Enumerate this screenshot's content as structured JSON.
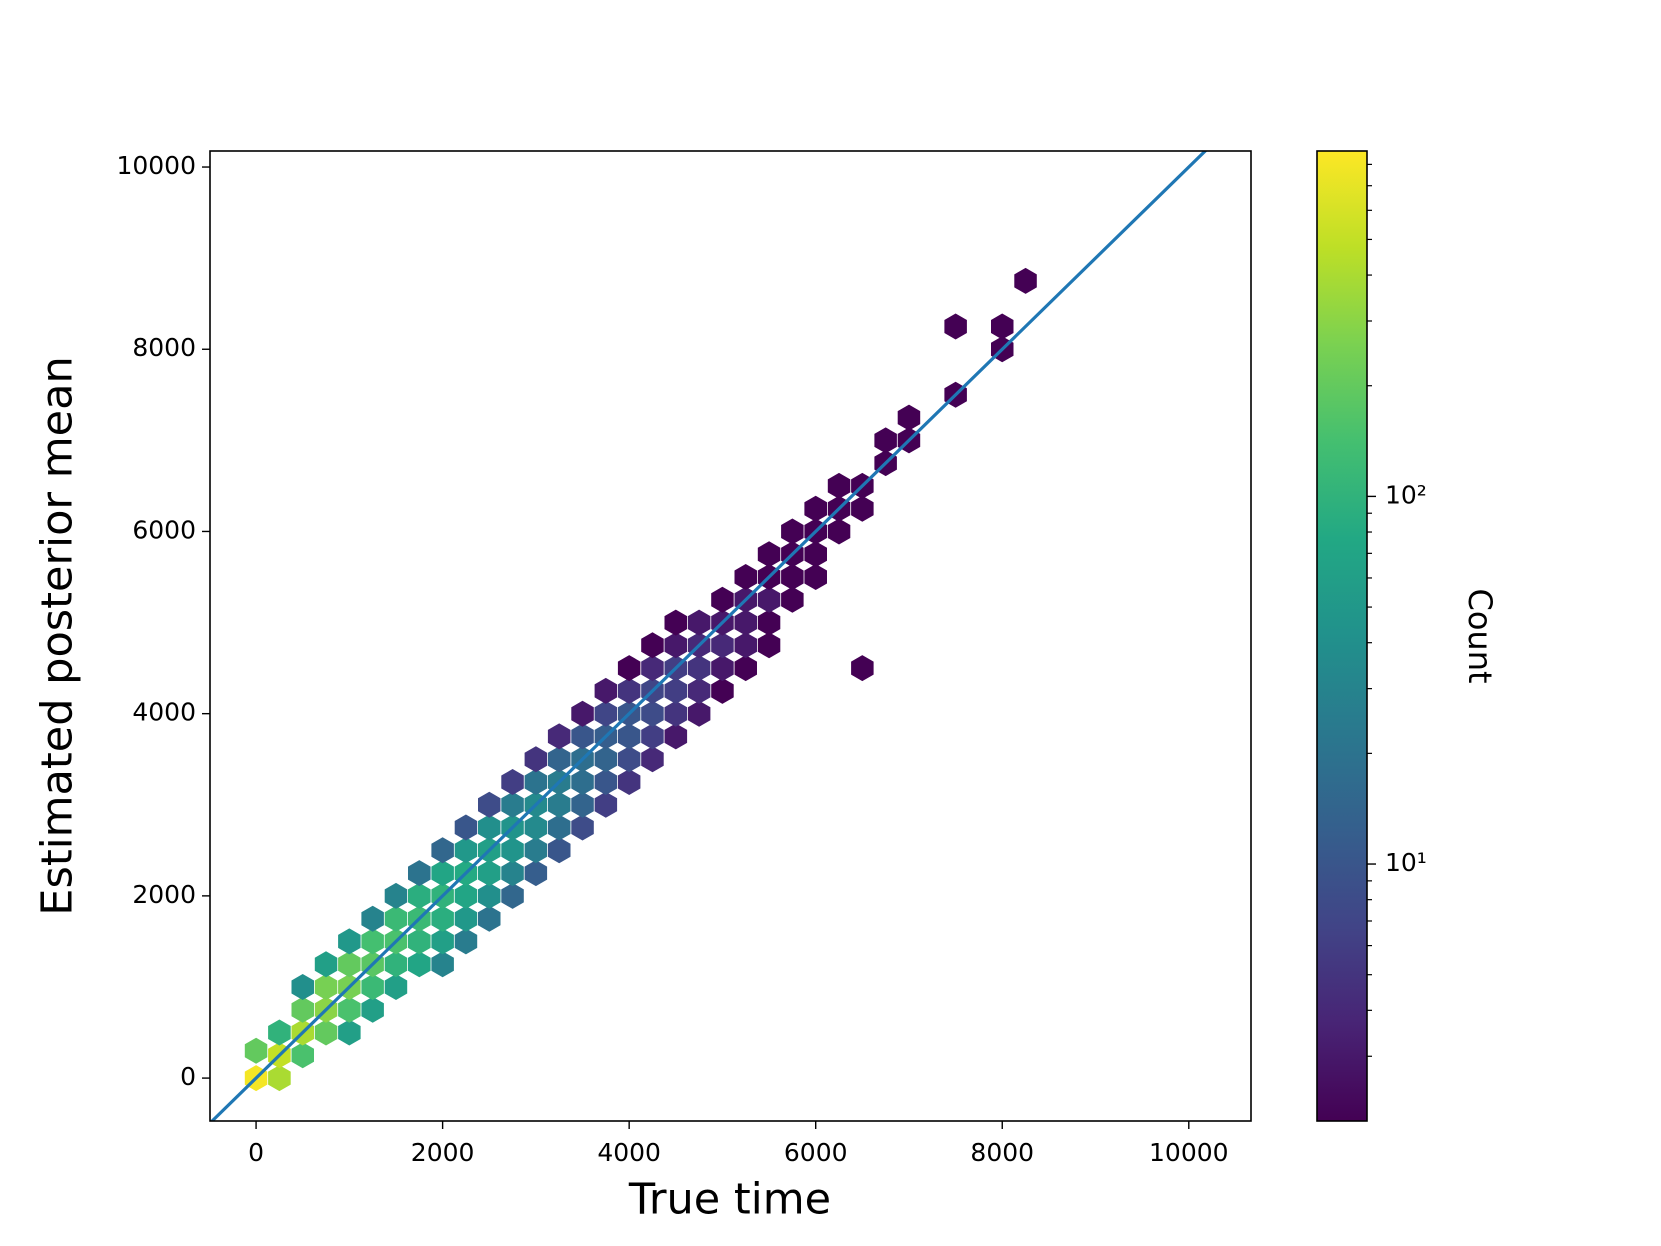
{
  "chart_data": {
    "type": "hexbin",
    "xlabel": "True time",
    "ylabel": "Estimated posterior mean",
    "xlim": [
      -494,
      10667
    ],
    "ylim": [
      -471,
      10176
    ],
    "xticks": [
      0,
      2000,
      4000,
      6000,
      8000,
      10000
    ],
    "yticks": [
      0,
      2000,
      4000,
      6000,
      8000,
      10000
    ],
    "colormap": "viridis",
    "color_scale": "log",
    "colorbar": {
      "label": "Count",
      "clim": [
        2,
        870
      ],
      "ticks": [
        {
          "value": 10,
          "label": "10¹"
        },
        {
          "value": 100,
          "label": "10²"
        }
      ],
      "minor_ticks": [
        3,
        4,
        5,
        6,
        7,
        8,
        9,
        20,
        30,
        40,
        50,
        60,
        70,
        80,
        90,
        200,
        300,
        400,
        500,
        600,
        700,
        800
      ]
    },
    "reference_line": {
      "x": [
        -494,
        10667
      ],
      "y": [
        -494,
        10667
      ],
      "color": "#1f77b4"
    },
    "bins": [
      {
        "x": 0,
        "y": 0,
        "count": 800
      },
      {
        "x": 0,
        "y": 300,
        "count": 200
      },
      {
        "x": 250,
        "y": 0,
        "count": 400
      },
      {
        "x": 250,
        "y": 250,
        "count": 500
      },
      {
        "x": 250,
        "y": 500,
        "count": 100
      },
      {
        "x": 500,
        "y": 250,
        "count": 150
      },
      {
        "x": 500,
        "y": 500,
        "count": 400
      },
      {
        "x": 500,
        "y": 750,
        "count": 200
      },
      {
        "x": 500,
        "y": 1000,
        "count": 40
      },
      {
        "x": 750,
        "y": 500,
        "count": 200
      },
      {
        "x": 750,
        "y": 750,
        "count": 300
      },
      {
        "x": 750,
        "y": 1000,
        "count": 250
      },
      {
        "x": 750,
        "y": 1250,
        "count": 60
      },
      {
        "x": 1000,
        "y": 500,
        "count": 60
      },
      {
        "x": 1000,
        "y": 750,
        "count": 150
      },
      {
        "x": 1000,
        "y": 1000,
        "count": 250
      },
      {
        "x": 1000,
        "y": 1250,
        "count": 200
      },
      {
        "x": 1000,
        "y": 1500,
        "count": 50
      },
      {
        "x": 1250,
        "y": 750,
        "count": 60
      },
      {
        "x": 1250,
        "y": 1000,
        "count": 120
      },
      {
        "x": 1250,
        "y": 1250,
        "count": 180
      },
      {
        "x": 1250,
        "y": 1500,
        "count": 140
      },
      {
        "x": 1250,
        "y": 1750,
        "count": 30
      },
      {
        "x": 1500,
        "y": 1000,
        "count": 60
      },
      {
        "x": 1500,
        "y": 1250,
        "count": 100
      },
      {
        "x": 1500,
        "y": 1500,
        "count": 150
      },
      {
        "x": 1500,
        "y": 1750,
        "count": 120
      },
      {
        "x": 1500,
        "y": 2000,
        "count": 30
      },
      {
        "x": 1750,
        "y": 1250,
        "count": 70
      },
      {
        "x": 1750,
        "y": 1500,
        "count": 100
      },
      {
        "x": 1750,
        "y": 1750,
        "count": 120
      },
      {
        "x": 1750,
        "y": 2000,
        "count": 90
      },
      {
        "x": 1750,
        "y": 2250,
        "count": 20
      },
      {
        "x": 2000,
        "y": 1250,
        "count": 30
      },
      {
        "x": 2000,
        "y": 1500,
        "count": 60
      },
      {
        "x": 2000,
        "y": 1750,
        "count": 90
      },
      {
        "x": 2000,
        "y": 2000,
        "count": 100
      },
      {
        "x": 2000,
        "y": 2250,
        "count": 70
      },
      {
        "x": 2000,
        "y": 2500,
        "count": 15
      },
      {
        "x": 2250,
        "y": 1500,
        "count": 25
      },
      {
        "x": 2250,
        "y": 1750,
        "count": 50
      },
      {
        "x": 2250,
        "y": 2000,
        "count": 70
      },
      {
        "x": 2250,
        "y": 2250,
        "count": 80
      },
      {
        "x": 2250,
        "y": 2500,
        "count": 50
      },
      {
        "x": 2250,
        "y": 2750,
        "count": 10
      },
      {
        "x": 2500,
        "y": 1750,
        "count": 20
      },
      {
        "x": 2500,
        "y": 2000,
        "count": 40
      },
      {
        "x": 2500,
        "y": 2250,
        "count": 60
      },
      {
        "x": 2500,
        "y": 2500,
        "count": 60
      },
      {
        "x": 2500,
        "y": 2750,
        "count": 40
      },
      {
        "x": 2500,
        "y": 3000,
        "count": 8
      },
      {
        "x": 2750,
        "y": 2000,
        "count": 15
      },
      {
        "x": 2750,
        "y": 2250,
        "count": 30
      },
      {
        "x": 2750,
        "y": 2500,
        "count": 45
      },
      {
        "x": 2750,
        "y": 2750,
        "count": 45
      },
      {
        "x": 2750,
        "y": 3000,
        "count": 25
      },
      {
        "x": 2750,
        "y": 3250,
        "count": 6
      },
      {
        "x": 3000,
        "y": 2250,
        "count": 12
      },
      {
        "x": 3000,
        "y": 2500,
        "count": 25
      },
      {
        "x": 3000,
        "y": 2750,
        "count": 35
      },
      {
        "x": 3000,
        "y": 3000,
        "count": 35
      },
      {
        "x": 3000,
        "y": 3250,
        "count": 20
      },
      {
        "x": 3000,
        "y": 3500,
        "count": 5
      },
      {
        "x": 3250,
        "y": 2500,
        "count": 10
      },
      {
        "x": 3250,
        "y": 2750,
        "count": 18
      },
      {
        "x": 3250,
        "y": 3000,
        "count": 25
      },
      {
        "x": 3250,
        "y": 3250,
        "count": 25
      },
      {
        "x": 3250,
        "y": 3500,
        "count": 14
      },
      {
        "x": 3250,
        "y": 3750,
        "count": 4
      },
      {
        "x": 3500,
        "y": 2750,
        "count": 8
      },
      {
        "x": 3500,
        "y": 3000,
        "count": 14
      },
      {
        "x": 3500,
        "y": 3250,
        "count": 18
      },
      {
        "x": 3500,
        "y": 3500,
        "count": 18
      },
      {
        "x": 3500,
        "y": 3750,
        "count": 10
      },
      {
        "x": 3500,
        "y": 4000,
        "count": 3
      },
      {
        "x": 3750,
        "y": 3000,
        "count": 6
      },
      {
        "x": 3750,
        "y": 3250,
        "count": 10
      },
      {
        "x": 3750,
        "y": 3500,
        "count": 14
      },
      {
        "x": 3750,
        "y": 3750,
        "count": 12
      },
      {
        "x": 3750,
        "y": 4000,
        "count": 7
      },
      {
        "x": 3750,
        "y": 4250,
        "count": 3
      },
      {
        "x": 4000,
        "y": 3250,
        "count": 5
      },
      {
        "x": 4000,
        "y": 3500,
        "count": 8
      },
      {
        "x": 4000,
        "y": 3750,
        "count": 10
      },
      {
        "x": 4000,
        "y": 4000,
        "count": 10
      },
      {
        "x": 4000,
        "y": 4250,
        "count": 5
      },
      {
        "x": 4000,
        "y": 4500,
        "count": 2
      },
      {
        "x": 4250,
        "y": 3500,
        "count": 4
      },
      {
        "x": 4250,
        "y": 3750,
        "count": 6
      },
      {
        "x": 4250,
        "y": 4000,
        "count": 8
      },
      {
        "x": 4250,
        "y": 4250,
        "count": 7
      },
      {
        "x": 4250,
        "y": 4500,
        "count": 4
      },
      {
        "x": 4250,
        "y": 4750,
        "count": 2
      },
      {
        "x": 4500,
        "y": 3750,
        "count": 3
      },
      {
        "x": 4500,
        "y": 4000,
        "count": 5
      },
      {
        "x": 4500,
        "y": 4250,
        "count": 6
      },
      {
        "x": 4500,
        "y": 4500,
        "count": 6
      },
      {
        "x": 4500,
        "y": 4750,
        "count": 3
      },
      {
        "x": 4500,
        "y": 5000,
        "count": 2
      },
      {
        "x": 4750,
        "y": 4000,
        "count": 3
      },
      {
        "x": 4750,
        "y": 4250,
        "count": 4
      },
      {
        "x": 4750,
        "y": 4500,
        "count": 5
      },
      {
        "x": 4750,
        "y": 4750,
        "count": 4
      },
      {
        "x": 4750,
        "y": 5000,
        "count": 3
      },
      {
        "x": 5000,
        "y": 4250,
        "count": 2
      },
      {
        "x": 5000,
        "y": 4500,
        "count": 3
      },
      {
        "x": 5000,
        "y": 4750,
        "count": 4
      },
      {
        "x": 5000,
        "y": 5000,
        "count": 3
      },
      {
        "x": 5000,
        "y": 5250,
        "count": 2
      },
      {
        "x": 5250,
        "y": 4500,
        "count": 2
      },
      {
        "x": 5250,
        "y": 4750,
        "count": 3
      },
      {
        "x": 5250,
        "y": 5000,
        "count": 3
      },
      {
        "x": 5250,
        "y": 5250,
        "count": 3
      },
      {
        "x": 5250,
        "y": 5500,
        "count": 2
      },
      {
        "x": 5500,
        "y": 4750,
        "count": 2
      },
      {
        "x": 5500,
        "y": 5000,
        "count": 2
      },
      {
        "x": 5500,
        "y": 5250,
        "count": 3
      },
      {
        "x": 5500,
        "y": 5500,
        "count": 2
      },
      {
        "x": 5500,
        "y": 5750,
        "count": 2
      },
      {
        "x": 5750,
        "y": 5250,
        "count": 2
      },
      {
        "x": 5750,
        "y": 5500,
        "count": 2
      },
      {
        "x": 5750,
        "y": 5750,
        "count": 2
      },
      {
        "x": 5750,
        "y": 6000,
        "count": 2
      },
      {
        "x": 6000,
        "y": 5500,
        "count": 2
      },
      {
        "x": 6000,
        "y": 5750,
        "count": 2
      },
      {
        "x": 6000,
        "y": 6000,
        "count": 2
      },
      {
        "x": 6000,
        "y": 6250,
        "count": 2
      },
      {
        "x": 6250,
        "y": 6000,
        "count": 2
      },
      {
        "x": 6250,
        "y": 6250,
        "count": 2
      },
      {
        "x": 6250,
        "y": 6500,
        "count": 2
      },
      {
        "x": 6500,
        "y": 6250,
        "count": 2
      },
      {
        "x": 6500,
        "y": 6500,
        "count": 2
      },
      {
        "x": 6500,
        "y": 4500,
        "count": 2
      },
      {
        "x": 6750,
        "y": 6750,
        "count": 2
      },
      {
        "x": 6750,
        "y": 7000,
        "count": 2
      },
      {
        "x": 7000,
        "y": 7000,
        "count": 2
      },
      {
        "x": 7000,
        "y": 7250,
        "count": 2
      },
      {
        "x": 7500,
        "y": 7500,
        "count": 2
      },
      {
        "x": 7500,
        "y": 8250,
        "count": 2
      },
      {
        "x": 8000,
        "y": 8000,
        "count": 2
      },
      {
        "x": 8000,
        "y": 8250,
        "count": 2
      },
      {
        "x": 8250,
        "y": 8750,
        "count": 2
      }
    ]
  }
}
